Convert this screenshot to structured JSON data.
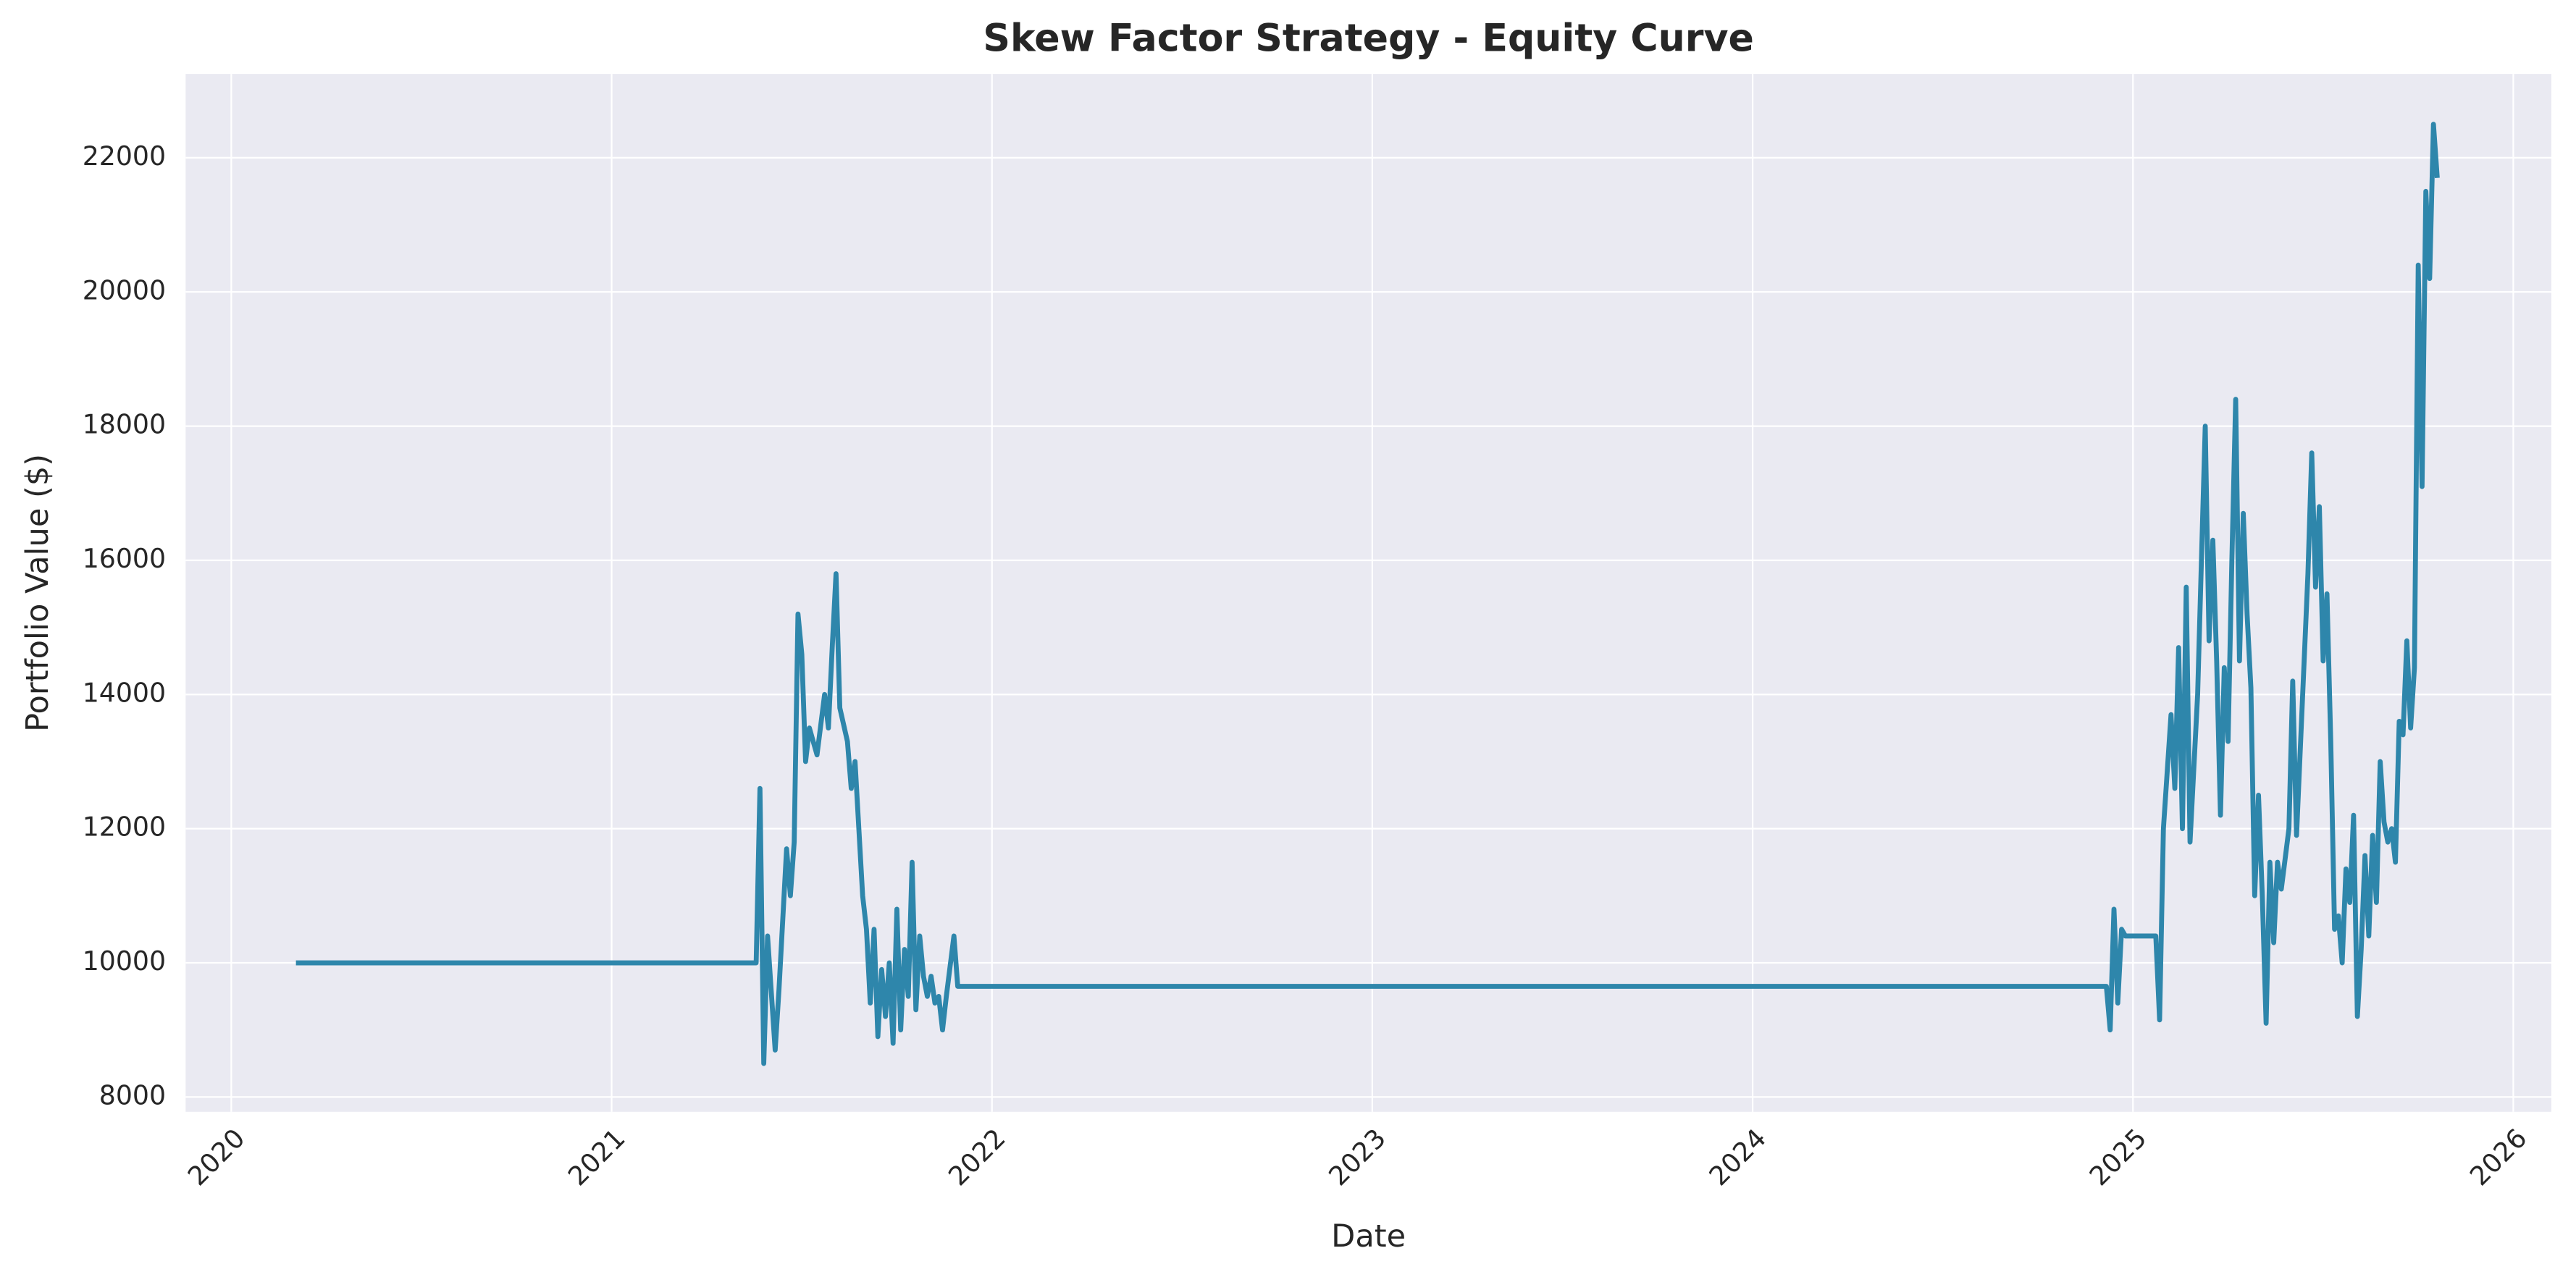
{
  "chart_data": {
    "type": "line",
    "title": "Skew Factor Strategy - Equity Curve",
    "x_label": "Date",
    "y_label": "Portfolio Value ($)",
    "xlim": [
      2019.88,
      2026.1
    ],
    "xticks": [
      2020,
      2021,
      2022,
      2023,
      2024,
      2025,
      2026
    ],
    "ylim": [
      7780,
      23250
    ],
    "yticks": [
      8000,
      10000,
      12000,
      14000,
      16000,
      18000,
      20000,
      22000
    ],
    "grid": true,
    "x": [
      2020.17,
      2021.38,
      2021.39,
      2021.4,
      2021.41,
      2021.43,
      2021.44,
      2021.46,
      2021.47,
      2021.48,
      2021.49,
      2021.5,
      2021.51,
      2021.52,
      2021.54,
      2021.56,
      2021.57,
      2021.58,
      2021.59,
      2021.6,
      2021.62,
      2021.63,
      2021.64,
      2021.65,
      2021.66,
      2021.67,
      2021.68,
      2021.69,
      2021.7,
      2021.71,
      2021.72,
      2021.73,
      2021.74,
      2021.75,
      2021.76,
      2021.77,
      2021.78,
      2021.79,
      2021.8,
      2021.81,
      2021.82,
      2021.83,
      2021.84,
      2021.85,
      2021.86,
      2021.87,
      2021.88,
      2021.9,
      2021.91,
      2024.93,
      2024.94,
      2024.95,
      2024.96,
      2024.97,
      2024.98,
      2025.06,
      2025.07,
      2025.08,
      2025.1,
      2025.11,
      2025.12,
      2025.13,
      2025.14,
      2025.15,
      2025.17,
      2025.19,
      2025.2,
      2025.21,
      2025.22,
      2025.23,
      2025.24,
      2025.25,
      2025.26,
      2025.27,
      2025.28,
      2025.29,
      2025.3,
      2025.31,
      2025.32,
      2025.33,
      2025.34,
      2025.35,
      2025.36,
      2025.37,
      2025.38,
      2025.39,
      2025.41,
      2025.42,
      2025.43,
      2025.45,
      2025.46,
      2025.47,
      2025.48,
      2025.49,
      2025.5,
      2025.51,
      2025.52,
      2025.53,
      2025.54,
      2025.55,
      2025.56,
      2025.57,
      2025.58,
      2025.59,
      2025.6,
      2025.61,
      2025.62,
      2025.63,
      2025.64,
      2025.65,
      2025.66,
      2025.67,
      2025.68,
      2025.69,
      2025.7,
      2025.71,
      2025.72,
      2025.73,
      2025.74,
      2025.75,
      2025.76,
      2025.77,
      2025.78,
      2025.79,
      2025.8
    ],
    "series": [
      {
        "name": "Portfolio Value",
        "color": "#2e86ab",
        "values": [
          10000,
          10000,
          12600,
          8500,
          10400,
          8700,
          9600,
          11700,
          11000,
          11800,
          15200,
          14600,
          13000,
          13500,
          13100,
          14000,
          13500,
          14700,
          15800,
          13800,
          13300,
          12600,
          13000,
          12000,
          11000,
          10500,
          9400,
          10500,
          8900,
          9900,
          9200,
          10000,
          8800,
          10800,
          9000,
          10200,
          9500,
          11500,
          9300,
          10400,
          9800,
          9500,
          9800,
          9400,
          9500,
          9000,
          9500,
          10400,
          9650,
          9650,
          9000,
          10800,
          9400,
          10500,
          10400,
          10400,
          9150,
          12000,
          13700,
          12600,
          14700,
          12000,
          15600,
          11800,
          14000,
          18000,
          14800,
          16300,
          14500,
          12200,
          14400,
          13300,
          16000,
          18400,
          14500,
          16700,
          15200,
          14100,
          11000,
          12500,
          11000,
          9100,
          11500,
          10300,
          11500,
          11100,
          12000,
          14200,
          11900,
          14500,
          15800,
          17600,
          15600,
          16800,
          14500,
          15500,
          13300,
          10500,
          10700,
          10000,
          11400,
          10900,
          12200,
          9200,
          10200,
          11600,
          10400,
          11900,
          10900,
          13000,
          12100,
          11800,
          12000,
          11500,
          13600,
          13400,
          14800,
          13500,
          14400,
          20400,
          17100,
          21500,
          20200,
          22500,
          21700
        ]
      }
    ]
  }
}
